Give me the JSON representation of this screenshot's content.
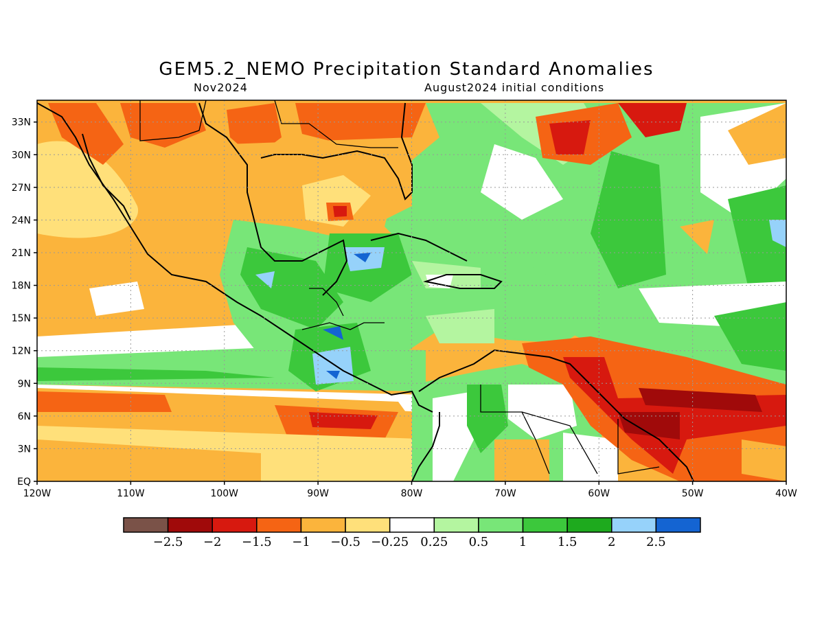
{
  "header": {
    "title": "GEM5.2_NEMO Precipitation Standard Anomalies",
    "subtitle_left": "Nov2024",
    "subtitle_right": "August2024 initial conditions"
  },
  "map": {
    "lon_range": [
      -120,
      -40
    ],
    "lat_range": [
      0,
      35
    ],
    "x_ticks": [
      "120W",
      "110W",
      "100W",
      "90W",
      "80W",
      "70W",
      "60W",
      "50W",
      "40W"
    ],
    "y_ticks": [
      "EQ",
      "3N",
      "6N",
      "9N",
      "12N",
      "15N",
      "18N",
      "21N",
      "24N",
      "27N",
      "30N",
      "33N"
    ]
  },
  "colorbar": {
    "colors": [
      "#7a5248",
      "#a00a0a",
      "#d7190f",
      "#f56414",
      "#fbb43c",
      "#ffe07a",
      "#ffffff",
      "#b4f5a0",
      "#78e678",
      "#3cc83c",
      "#1eaa1e",
      "#96d2fa",
      "#1464d2"
    ],
    "labels": [
      "-2.5",
      "-2",
      "-1.5",
      "-1",
      "-0.5",
      "-0.25",
      "0.25",
      "0.5",
      "1",
      "1.5",
      "2",
      "2.5"
    ]
  }
}
